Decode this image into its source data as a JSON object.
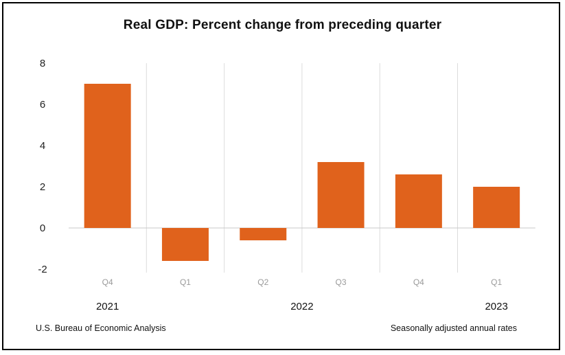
{
  "chart_data": {
    "type": "bar",
    "title": "Real GDP:  Percent change from preceding quarter",
    "categories": [
      "Q4",
      "Q1",
      "Q2",
      "Q3",
      "Q4",
      "Q1"
    ],
    "years": [
      {
        "label": "2021",
        "span": [
          0,
          0
        ]
      },
      {
        "label": "2022",
        "span": [
          1,
          4
        ]
      },
      {
        "label": "2023",
        "span": [
          5,
          5
        ]
      }
    ],
    "values": [
      7.0,
      -1.6,
      -0.6,
      3.2,
      2.6,
      2.0
    ],
    "ylim": [
      -2,
      8
    ],
    "yticks": [
      8,
      6,
      4,
      2,
      0,
      -2
    ],
    "bar_color": "#E0621C",
    "grid": false,
    "source": "U.S. Bureau of Economic Analysis",
    "note": "Seasonally adjusted annual rates"
  }
}
